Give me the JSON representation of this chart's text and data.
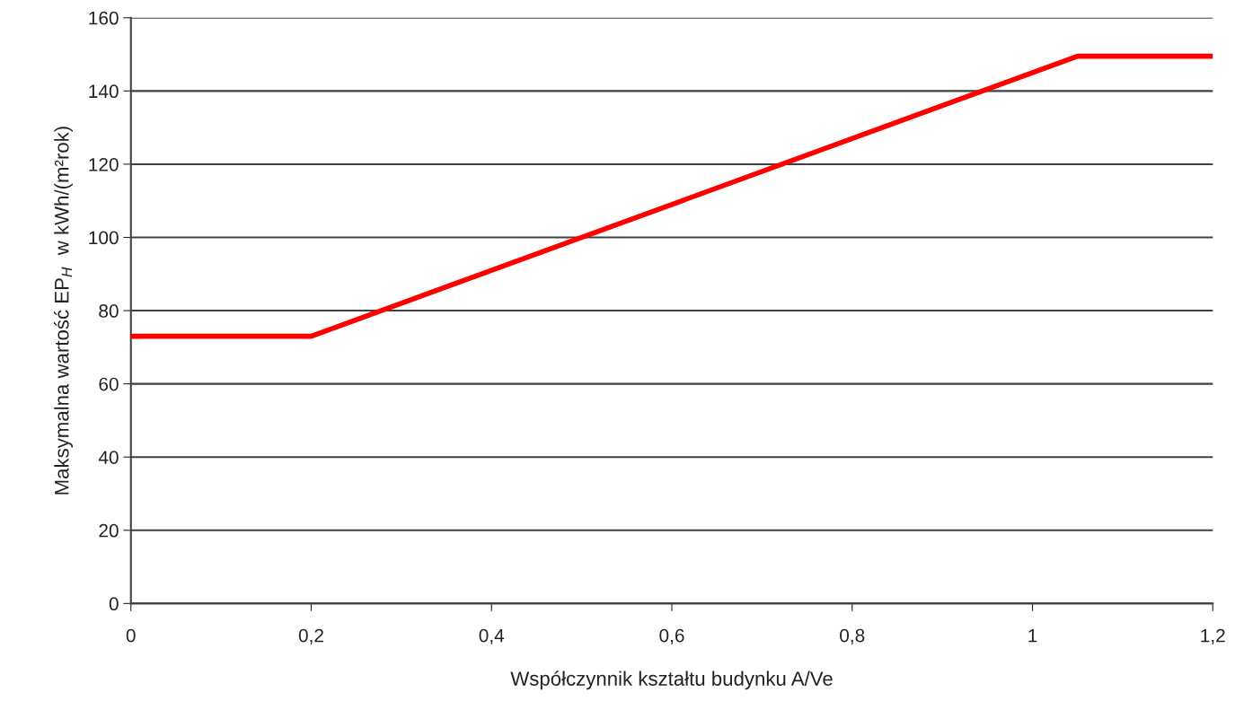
{
  "chart_data": {
    "type": "line",
    "xlabel": "Współczynnik kształtu budynku A/Ve",
    "ylabel": "Maksymalna wartość EP$_{H}$  w kWh/(m²rok)",
    "x": [
      0,
      0.2,
      1.05,
      1.2
    ],
    "series": [
      {
        "color": "#ff0000",
        "values": [
          73,
          73,
          149.5,
          149.5
        ]
      }
    ],
    "xlim": [
      0,
      1.2
    ],
    "ylim": [
      0,
      160
    ],
    "xticks": [
      {
        "value": 0,
        "label": "0"
      },
      {
        "value": 0.2,
        "label": "0,2"
      },
      {
        "value": 0.4,
        "label": "0,4"
      },
      {
        "value": 0.6,
        "label": "0,6"
      },
      {
        "value": 0.8,
        "label": "0,8"
      },
      {
        "value": 1,
        "label": "1"
      },
      {
        "value": 1.2,
        "label": "1,2"
      }
    ],
    "yticks": [
      0,
      20,
      40,
      60,
      80,
      100,
      120,
      140,
      160
    ],
    "grid": "y",
    "marker": "none",
    "line_style": "solid",
    "legend": false
  }
}
